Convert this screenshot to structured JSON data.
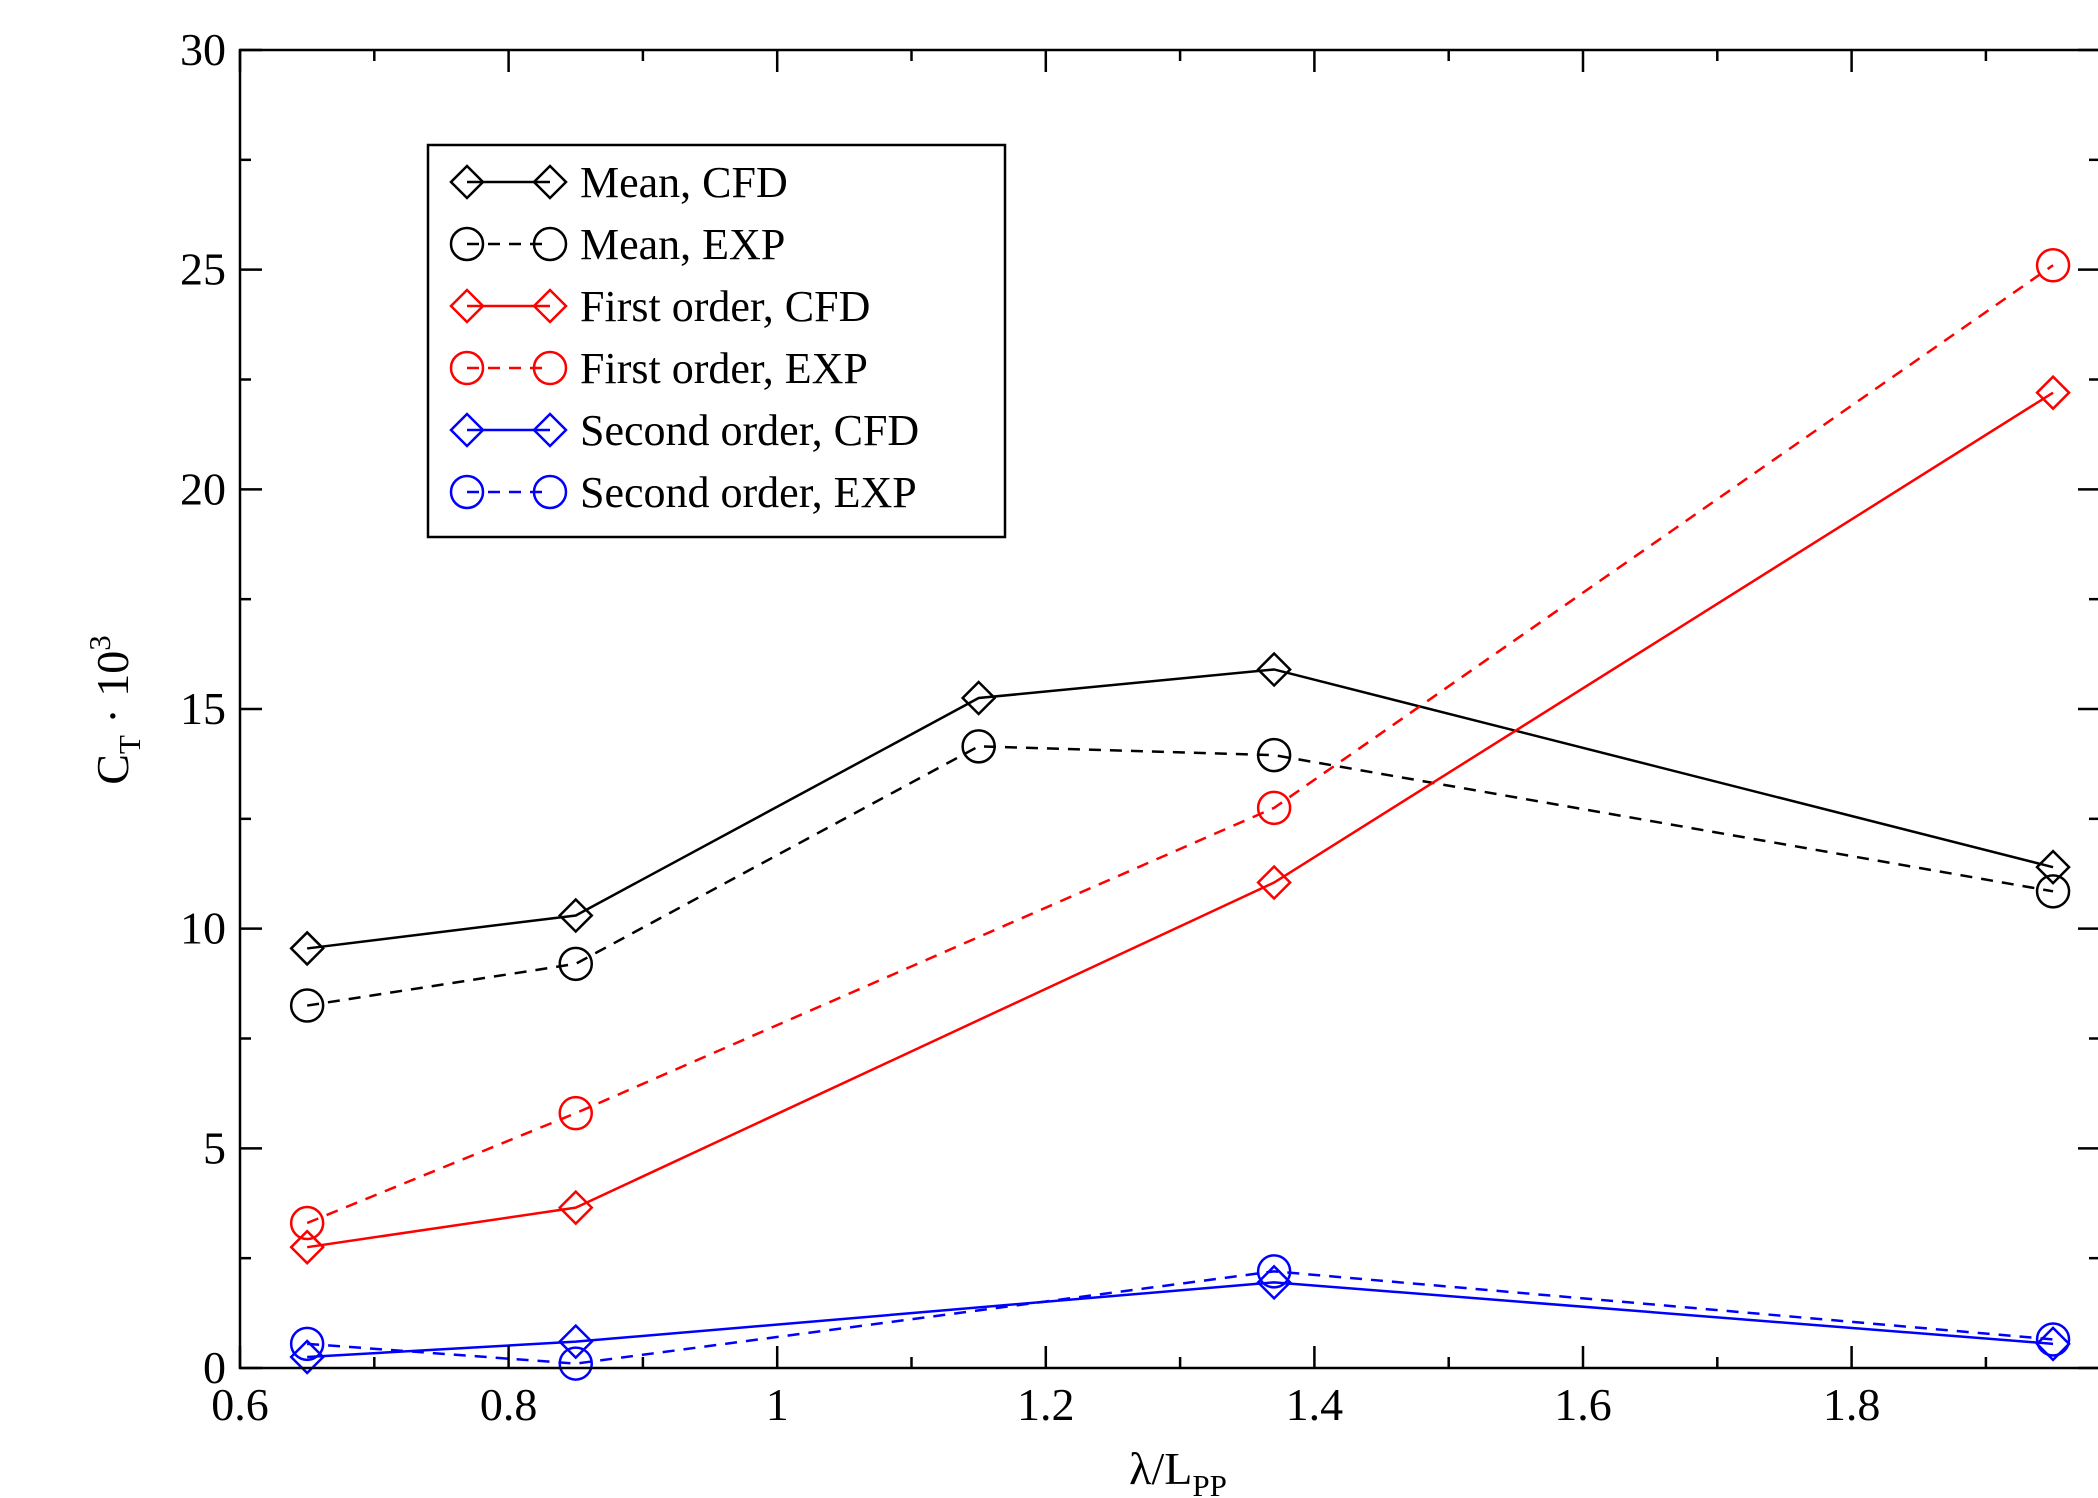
{
  "chart_data": {
    "type": "line",
    "title": "",
    "xlabel": {
      "main": "λ/L",
      "sub": "PP"
    },
    "ylabel": {
      "main": "C",
      "sub": "T",
      "mid": " · 10",
      "sup": "3"
    },
    "xlim": [
      0.6,
      1.95
    ],
    "ylim": [
      0,
      30
    ],
    "xticks": [
      "0.6",
      "0.8",
      "1",
      "1.2",
      "1.4",
      "1.6",
      "1.8"
    ],
    "yticks": [
      "0",
      "5",
      "10",
      "15",
      "20",
      "25",
      "30"
    ],
    "grid": false,
    "legend_position": "top-left",
    "series": [
      {
        "name": "Mean, CFD",
        "color": "#000000",
        "dashed": false,
        "marker": "diamond",
        "x": [
          0.65,
          0.85,
          1.15,
          1.37,
          1.95
        ],
        "y": [
          9.55,
          10.3,
          15.25,
          15.9,
          11.4
        ]
      },
      {
        "name": "Mean, EXP",
        "color": "#000000",
        "dashed": true,
        "marker": "circle",
        "x": [
          0.65,
          0.85,
          1.15,
          1.37,
          1.95
        ],
        "y": [
          8.25,
          9.2,
          14.15,
          13.95,
          10.85
        ]
      },
      {
        "name": "First order, CFD",
        "color": "#ff0000",
        "dashed": false,
        "marker": "diamond",
        "x": [
          0.65,
          0.85,
          1.37,
          1.95
        ],
        "y": [
          2.75,
          3.65,
          11.05,
          22.2
        ]
      },
      {
        "name": "First order, EXP",
        "color": "#ff0000",
        "dashed": true,
        "marker": "circle",
        "x": [
          0.65,
          0.85,
          1.37,
          1.95
        ],
        "y": [
          3.3,
          5.8,
          12.75,
          25.1
        ]
      },
      {
        "name": "Second order, CFD",
        "color": "#0000ff",
        "dashed": false,
        "marker": "diamond",
        "x": [
          0.65,
          0.85,
          1.37,
          1.95
        ],
        "y": [
          0.25,
          0.6,
          1.95,
          0.55
        ]
      },
      {
        "name": "Second order, EXP",
        "color": "#0000ff",
        "dashed": true,
        "marker": "circle",
        "x": [
          0.65,
          0.85,
          1.37,
          1.95
        ],
        "y": [
          0.55,
          0.1,
          2.2,
          0.65
        ]
      }
    ]
  }
}
